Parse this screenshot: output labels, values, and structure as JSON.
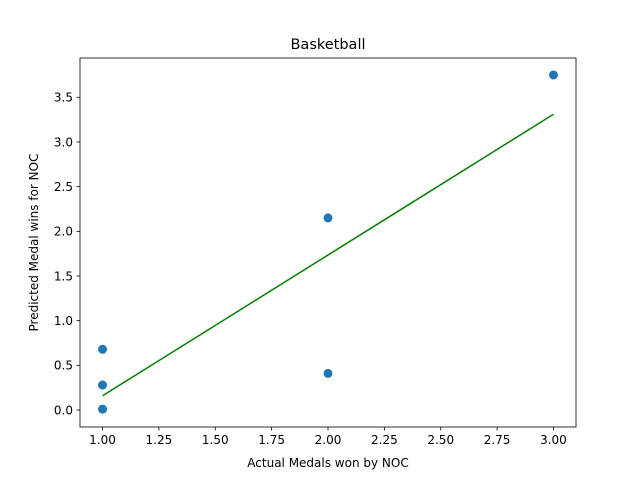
{
  "chart_data": {
    "type": "scatter",
    "title": "Basketball",
    "xlabel": "Actual Medals won by NOC",
    "ylabel": "Predicted Medal wins for NOC",
    "xlim": [
      0.9,
      3.1
    ],
    "ylim": [
      -0.19,
      3.94
    ],
    "xticks": [
      1.0,
      1.25,
      1.5,
      1.75,
      2.0,
      2.25,
      2.5,
      2.75,
      3.0
    ],
    "xtick_labels": [
      "1.00",
      "1.25",
      "1.50",
      "1.75",
      "2.00",
      "2.25",
      "2.50",
      "2.75",
      "3.00"
    ],
    "yticks": [
      0.0,
      0.5,
      1.0,
      1.5,
      2.0,
      2.5,
      3.0,
      3.5
    ],
    "ytick_labels": [
      "0.0",
      "0.5",
      "1.0",
      "1.5",
      "2.0",
      "2.5",
      "3.0",
      "3.5"
    ],
    "grid": false,
    "series": [
      {
        "kind": "scatter",
        "color": "#1f77b4",
        "points": [
          {
            "x": 1.0,
            "y": 0.68
          },
          {
            "x": 1.0,
            "y": 0.28
          },
          {
            "x": 1.0,
            "y": 0.01
          },
          {
            "x": 2.0,
            "y": 2.15
          },
          {
            "x": 2.0,
            "y": 0.41
          },
          {
            "x": 3.0,
            "y": 3.75
          }
        ]
      },
      {
        "kind": "line",
        "color": "#008000",
        "points": [
          {
            "x": 1.0,
            "y": 0.16
          },
          {
            "x": 3.0,
            "y": 3.31
          }
        ]
      }
    ]
  }
}
